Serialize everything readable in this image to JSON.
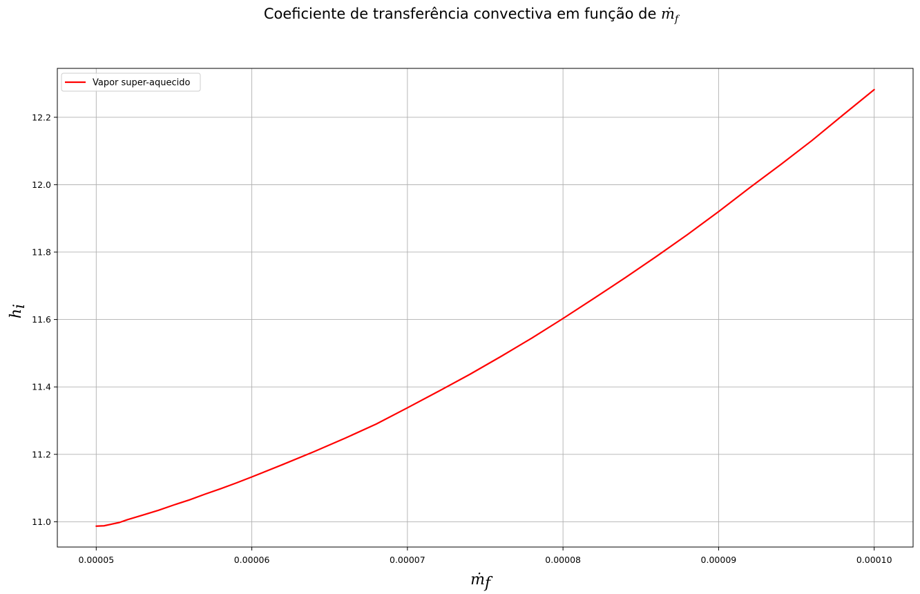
{
  "chart_data": {
    "type": "line",
    "title_prefix": "Coeficiente de transferência convectiva em função de ",
    "title_math": "ṁ",
    "title_math_sub": "f",
    "xlabel": "ṁ",
    "xlabel_sub": "f",
    "ylabel": "h",
    "ylabel_sub": "i",
    "xlim": [
      4.75e-05,
      0.0001025
    ],
    "ylim": [
      10.925,
      12.345
    ],
    "xticks": [
      5e-05,
      6e-05,
      7e-05,
      8e-05,
      9e-05,
      0.0001
    ],
    "xtick_labels": [
      "0.00005",
      "0.00006",
      "0.00007",
      "0.00008",
      "0.00009",
      "0.00010"
    ],
    "yticks": [
      11.0,
      11.2,
      11.4,
      11.6,
      11.8,
      12.0,
      12.2
    ],
    "ytick_labels": [
      "11.0",
      "11.2",
      "11.4",
      "11.6",
      "11.8",
      "12.0",
      "12.2"
    ],
    "grid": true,
    "legend_position": "upper left",
    "series": [
      {
        "name": "Vapor super-aquecido",
        "color": "#ff0000",
        "x": [
          5e-05,
          5.05e-05,
          5.1e-05,
          5.15e-05,
          5.2e-05,
          5.3e-05,
          5.4e-05,
          5.5e-05,
          5.6e-05,
          5.7e-05,
          5.8e-05,
          5.9e-05,
          6e-05,
          6.2e-05,
          6.4e-05,
          6.6e-05,
          6.8e-05,
          7e-05,
          7.2e-05,
          7.4e-05,
          7.6e-05,
          7.8e-05,
          8e-05,
          8.2e-05,
          8.4e-05,
          8.6e-05,
          8.8e-05,
          9e-05,
          9.2e-05,
          9.4e-05,
          9.6e-05,
          9.8e-05,
          0.0001
        ],
        "y": [
          10.987,
          10.988,
          10.993,
          10.998,
          11.006,
          11.02,
          11.034,
          11.05,
          11.065,
          11.082,
          11.098,
          11.115,
          11.133,
          11.17,
          11.208,
          11.248,
          11.29,
          11.338,
          11.387,
          11.437,
          11.49,
          11.545,
          11.603,
          11.663,
          11.724,
          11.787,
          11.852,
          11.92,
          11.991,
          12.06,
          12.131,
          12.207,
          12.282
        ]
      }
    ]
  }
}
